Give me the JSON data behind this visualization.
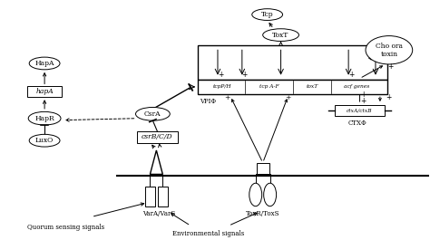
{
  "bg_color": "#ffffff",
  "labels": {
    "env_signals": "Environmental signals",
    "quorum": "Quorum sensing signals",
    "varA_varS": "VarA/VarS",
    "toxR_toxS": "ToxR/ToxS",
    "luxO": "LuxO",
    "hapR": "HapR",
    "hapA_gene": "hapA",
    "hapA_protein": "HapA",
    "csrBCD": "csrB/C/D",
    "csrA": "CsrA",
    "vpiPhi": "VPIΦ",
    "ctxPhi": "CTXΦ",
    "ctxAB": "ctxA/ctxB",
    "cholera_toxin": "Cho ora\ntoxin",
    "tcpPH": "tcpP/H",
    "tcpAF": "tcp A-F",
    "toxT_gene": "toxT",
    "acf_genes": "acf genes",
    "toxT_protein": "ToxT",
    "tcp": "Tcp"
  }
}
